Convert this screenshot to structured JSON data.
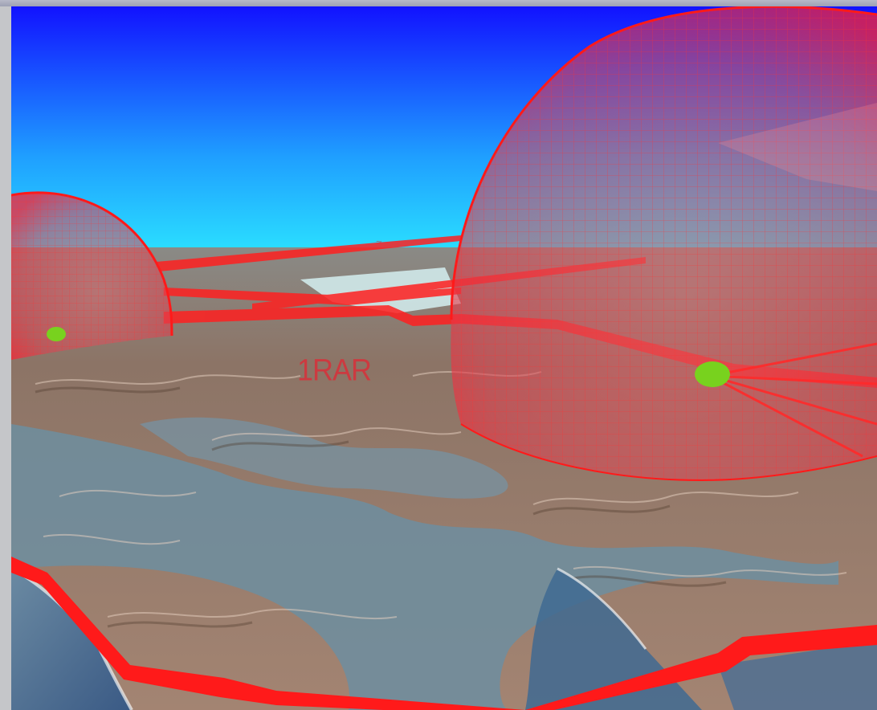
{
  "window": {
    "title": ""
  },
  "scene": {
    "labels": {
      "unit_label": "1RAR",
      "far_label": "~"
    },
    "colors": {
      "sky_top": "#1414ff",
      "sky_bottom": "#22f0ff",
      "zone_red": "#ff1a1a",
      "unit_marker": "#78d21e",
      "sea": "#4a6a8c",
      "land": "#9a7a6a"
    },
    "objects": [
      {
        "name": "threat-dome-left",
        "kind": "wireframe-dome"
      },
      {
        "name": "threat-dome-right",
        "kind": "wireframe-dome"
      },
      {
        "name": "unit-marker-left",
        "kind": "unit-marker"
      },
      {
        "name": "unit-marker-right",
        "kind": "unit-marker"
      },
      {
        "name": "corridor-ribbons",
        "kind": "route-ribbon"
      },
      {
        "name": "boundary-ribbon",
        "kind": "boundary"
      }
    ]
  }
}
